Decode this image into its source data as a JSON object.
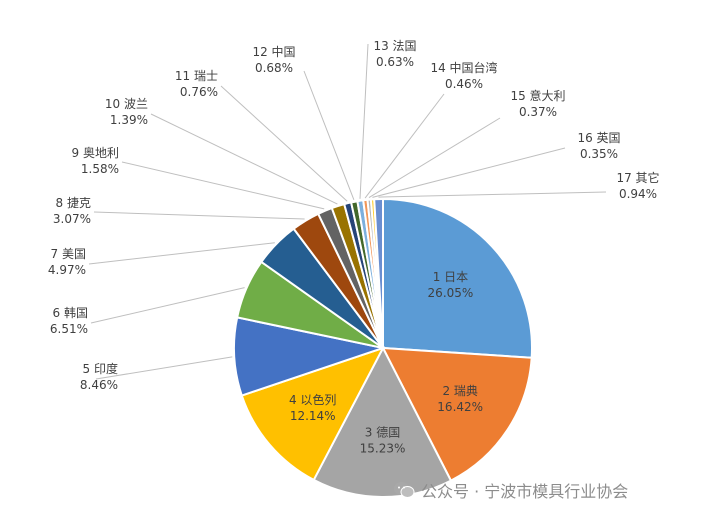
{
  "chart_data": {
    "type": "pie",
    "title": "",
    "start_angle_deg": 0,
    "direction": "clockwise",
    "slices": [
      {
        "label": "1 日本",
        "value": 26.05,
        "pct": "26.05%",
        "color": "#5b9bd5"
      },
      {
        "label": "2 瑞典",
        "value": 16.42,
        "pct": "16.42%",
        "color": "#ed7d31"
      },
      {
        "label": "3 德国",
        "value": 15.23,
        "pct": "15.23%",
        "color": "#a5a5a5"
      },
      {
        "label": "4 以色列",
        "value": 12.14,
        "pct": "12.14%",
        "color": "#ffc000"
      },
      {
        "label": "5 印度",
        "value": 8.46,
        "pct": "8.46%",
        "color": "#4472c4"
      },
      {
        "label": "6 韩国",
        "value": 6.51,
        "pct": "6.51%",
        "color": "#70ad47"
      },
      {
        "label": "7 美国",
        "value": 4.97,
        "pct": "4.97%",
        "color": "#255e91"
      },
      {
        "label": "8 捷克",
        "value": 3.07,
        "pct": "3.07%",
        "color": "#9e480e"
      },
      {
        "label": "9 奥地利",
        "value": 1.58,
        "pct": "1.58%",
        "color": "#636363"
      },
      {
        "label": "10 波兰",
        "value": 1.39,
        "pct": "1.39%",
        "color": "#997300"
      },
      {
        "label": "11 瑞士",
        "value": 0.76,
        "pct": "0.76%",
        "color": "#264478"
      },
      {
        "label": "12 中国",
        "value": 0.68,
        "pct": "0.68%",
        "color": "#43682b"
      },
      {
        "label": "13 法国",
        "value": 0.63,
        "pct": "0.63%",
        "color": "#7cafdd"
      },
      {
        "label": "14 中国台湾",
        "value": 0.46,
        "pct": "0.46%",
        "color": "#f1975a"
      },
      {
        "label": "15 意大利",
        "value": 0.37,
        "pct": "0.37%",
        "color": "#b7b7b7"
      },
      {
        "label": "16 英国",
        "value": 0.35,
        "pct": "0.35%",
        "color": "#ffcd33"
      },
      {
        "label": "17 其它",
        "value": 0.94,
        "pct": "0.94%",
        "color": "#698ed0"
      }
    ]
  },
  "watermark": {
    "text": "公众号 · 宁波市模具行业协会",
    "icon": "wechat-icon"
  }
}
